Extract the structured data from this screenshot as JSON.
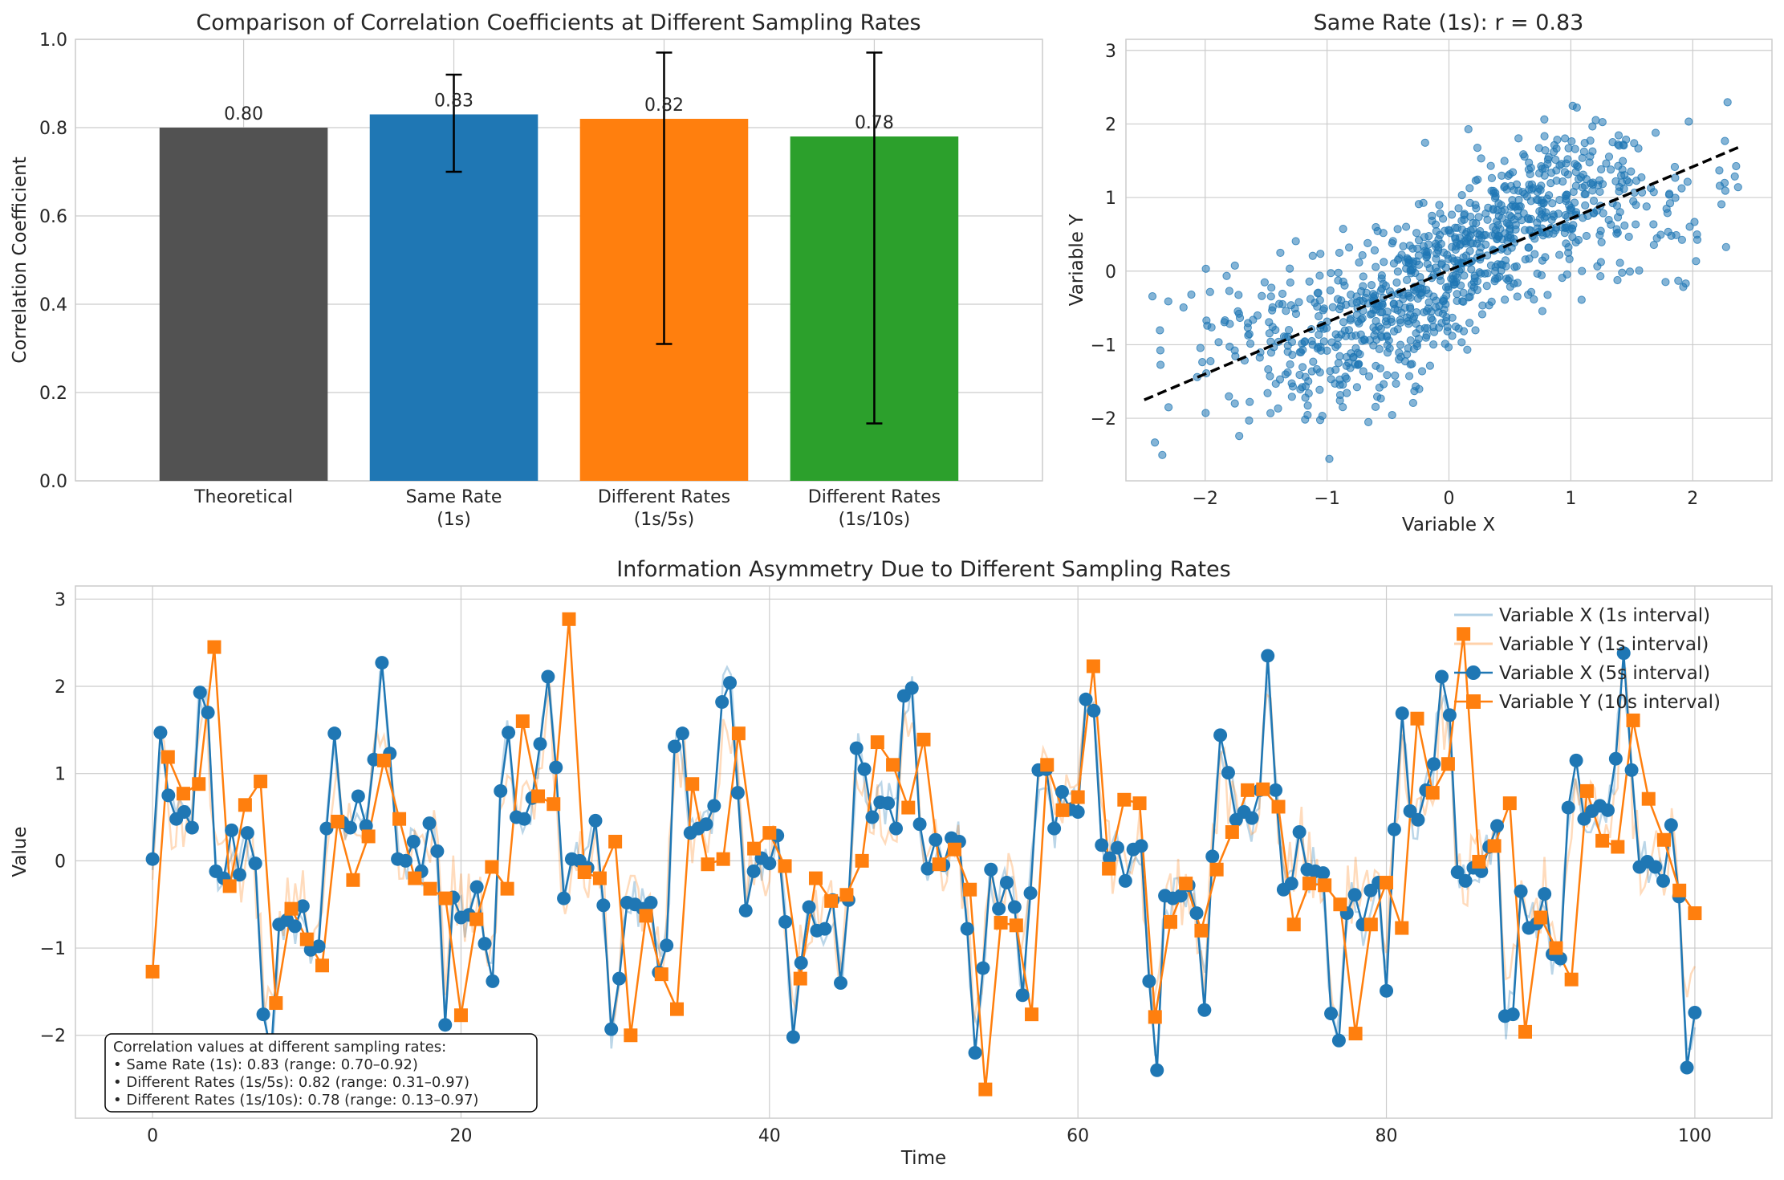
{
  "chart_data": [
    {
      "type": "bar",
      "title": "Comparison of Correlation Coefficients at Different Sampling Rates",
      "ylabel": "Correlation Coefficient",
      "xlabel": "",
      "ylim": [
        0,
        1.0
      ],
      "yticks": [
        "0.0",
        "0.2",
        "0.4",
        "0.6",
        "0.8",
        "1.0"
      ],
      "grid": true,
      "categories": [
        [
          "Theoretical"
        ],
        [
          "Same Rate",
          "(1s)"
        ],
        [
          "Different Rates",
          "(1s/5s)"
        ],
        [
          "Different Rates",
          "(1s/10s)"
        ]
      ],
      "values": [
        0.8,
        0.83,
        0.82,
        0.78
      ],
      "value_labels": [
        "0.80",
        "0.83",
        "0.82",
        "0.78"
      ],
      "error_low": [
        null,
        0.7,
        0.31,
        0.13
      ],
      "error_high": [
        null,
        0.92,
        0.97,
        0.97
      ],
      "colors": [
        "#525252",
        "#1f77b4",
        "#ff7f0e",
        "#2ca02c"
      ]
    },
    {
      "type": "scatter",
      "title": "Same Rate (1s): r = 0.83",
      "xlabel": "Variable X",
      "ylabel": "Variable Y",
      "xlim": [
        -2.65,
        2.65
      ],
      "ylim": [
        -2.85,
        3.15
      ],
      "xticks": [
        "−2",
        "−1",
        "0",
        "1",
        "2"
      ],
      "yticks": [
        "−2",
        "−1",
        "0",
        "1",
        "2",
        "3"
      ],
      "grid": true,
      "n_points": 1000,
      "r": 0.83,
      "point_color": "#1f77b4",
      "trend_line": {
        "x": [
          -2.5,
          2.4
        ],
        "y": [
          -1.75,
          1.7
        ],
        "color": "#000000",
        "style": "dashed"
      }
    },
    {
      "type": "line",
      "title": "Information Asymmetry Due to Different Sampling Rates",
      "xlabel": "Time",
      "ylabel": "Value",
      "xlim": [
        -5,
        105
      ],
      "ylim": [
        -2.95,
        3.15
      ],
      "xticks": [
        "0",
        "20",
        "40",
        "60",
        "80",
        "100"
      ],
      "yticks": [
        "−2",
        "−1",
        "0",
        "1",
        "2",
        "3"
      ],
      "grid": true,
      "legend_position": "top-right",
      "series": [
        {
          "name": "Variable X (1s interval)",
          "color": "#1f77b4",
          "style": "thin-light"
        },
        {
          "name": "Variable Y (1s interval)",
          "color": "#ff7f0e",
          "style": "thin-light"
        },
        {
          "name": "Variable X (5s interval)",
          "color": "#1f77b4",
          "marker": "circle"
        },
        {
          "name": "Variable Y (10s interval)",
          "color": "#ff7f0e",
          "marker": "square"
        }
      ],
      "x_marked_values": [
        0.02,
        1.47,
        0.75,
        0.48,
        0.56,
        0.38,
        1.93,
        1.7,
        -0.12,
        -0.2,
        0.35,
        -0.16,
        0.32,
        -0.03,
        -1.76,
        -2.2,
        -0.73,
        -0.68,
        -0.75,
        -0.52,
        -1.02,
        -0.98,
        0.37,
        1.46,
        0.44,
        0.38,
        0.74,
        0.4,
        1.16,
        2.27,
        1.23,
        0.02,
        0.0,
        0.22,
        -0.12,
        0.43,
        0.11,
        -1.88,
        -0.42,
        -0.65,
        -0.62,
        -0.3,
        -0.95,
        -1.38,
        0.8,
        1.47,
        0.5,
        0.48,
        0.72,
        1.34,
        2.11,
        1.07,
        -0.43,
        0.02,
        0.0,
        -0.08,
        0.46,
        -0.51,
        -1.93,
        -1.35,
        -0.48,
        -0.5,
        -0.55,
        -0.48,
        -1.28,
        -0.97,
        1.31,
        1.46,
        0.32,
        0.37,
        0.42,
        0.63,
        1.82,
        2.04,
        0.78,
        -0.57,
        -0.12,
        0.03,
        -0.03,
        0.29,
        -0.7,
        -2.02,
        -1.17,
        -0.53,
        -0.8,
        -0.78,
        -0.45,
        -1.4,
        -0.45,
        1.29,
        1.05,
        0.5,
        0.67,
        0.66,
        0.37,
        1.89,
        1.98,
        0.42,
        -0.09,
        0.24,
        -0.05,
        0.26,
        0.22,
        -0.78,
        -2.2,
        -1.23,
        -0.1,
        -0.55,
        -0.25,
        -0.53,
        -1.54,
        -0.37,
        1.04,
        1.05,
        0.37,
        0.79,
        0.59,
        0.56,
        1.85,
        1.72,
        0.18,
        0.03,
        0.15,
        -0.23,
        0.13,
        0.17,
        -1.38,
        -2.4,
        -0.4,
        -0.43,
        -0.4,
        -0.28,
        -0.6,
        -1.71,
        0.05,
        1.44,
        1.01,
        0.47,
        0.56,
        0.49,
        0.81,
        2.35,
        0.81,
        -0.33,
        -0.26,
        0.33,
        -0.1,
        -0.12,
        -0.14,
        -1.75,
        -2.06,
        -0.6,
        -0.39,
        -0.73,
        -0.34,
        -0.25,
        -1.49,
        0.36,
        1.69,
        0.57,
        0.47,
        0.81,
        1.11,
        2.11,
        1.67,
        -0.13,
        -0.23,
        -0.08,
        -0.12,
        0.16,
        0.4,
        -1.78,
        -1.76,
        -0.35,
        -0.77,
        -0.72,
        -0.38,
        -1.07,
        -1.12,
        0.61,
        1.15,
        0.48,
        0.57,
        0.63,
        0.58,
        1.17,
        2.38,
        1.04,
        -0.07,
        -0.01,
        -0.07,
        -0.23,
        0.41,
        -0.41,
        -2.37,
        -1.74
      ],
      "y_marked_values": [
        -1.27,
        1.19,
        0.77,
        0.88,
        2.45,
        -0.29,
        0.64,
        0.91,
        -1.63,
        -0.55,
        -0.9,
        -1.2,
        0.45,
        -0.22,
        0.28,
        1.15,
        0.48,
        -0.2,
        -0.32,
        -0.43,
        -1.77,
        -0.67,
        -0.07,
        -0.32,
        1.6,
        0.74,
        0.65,
        2.77,
        -0.13,
        -0.2,
        0.22,
        -2.0,
        -0.63,
        -1.3,
        -1.7,
        0.88,
        -0.04,
        0.02,
        1.46,
        0.14,
        0.32,
        -0.06,
        -1.35,
        -0.2,
        -0.46,
        -0.39,
        0.0,
        1.36,
        1.1,
        0.61,
        1.39,
        -0.04,
        0.13,
        -0.33,
        -2.62,
        -0.71,
        -0.74,
        -1.76,
        1.1,
        0.58,
        0.73,
        2.23,
        -0.09,
        0.7,
        0.66,
        -1.79,
        -0.7,
        -0.26,
        -0.8,
        -0.1,
        0.33,
        0.81,
        0.82,
        0.62,
        -0.73,
        -0.26,
        -0.28,
        -0.5,
        -1.98,
        -0.73,
        -0.25,
        -0.77,
        1.63,
        0.78,
        1.11,
        2.6,
        -0.01,
        0.17,
        0.66,
        -1.96,
        -0.65,
        -1.0,
        -1.36,
        0.8,
        0.23,
        0.16,
        1.61,
        0.71,
        0.24,
        -0.34,
        -0.6
      ]
    }
  ],
  "annotation": {
    "lines": [
      "Correlation values at different sampling rates:",
      "• Same Rate (1s): 0.83 (range: 0.70–0.92)",
      "• Different Rates (1s/5s): 0.82 (range: 0.31–0.97)",
      "• Different Rates (1s/10s): 0.78 (range: 0.13–0.97)"
    ]
  }
}
